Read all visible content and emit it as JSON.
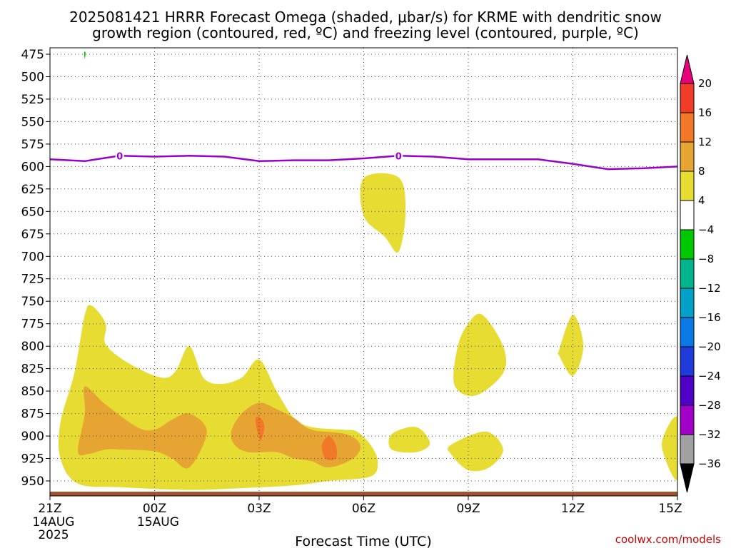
{
  "title_lines": [
    "2025081421 HRRR Forecast Omega (shaded, μbar/s) for KRME with dendritic snow",
    "growth region (contoured, red, ºC) and freezing level (contoured, purple, ºC)"
  ],
  "credit": "coolwx.com/models",
  "chart_data": {
    "type": "time-height contour",
    "xlabel": "Forecast Time (UTC)",
    "ylabel": "",
    "x_range_hours": [
      0,
      18
    ],
    "ylim_hpa": [
      470,
      962
    ],
    "y_inverted": true,
    "grid": true,
    "y_ticks": [
      475,
      500,
      525,
      550,
      575,
      600,
      625,
      650,
      675,
      700,
      725,
      750,
      775,
      800,
      825,
      850,
      875,
      900,
      925,
      950
    ],
    "x_ticks": [
      {
        "hour": 0,
        "label": "21Z",
        "date": [
          "14AUG",
          "2025"
        ]
      },
      {
        "hour": 3,
        "label": "00Z",
        "date": [
          "15AUG"
        ]
      },
      {
        "hour": 6,
        "label": "03Z",
        "date": []
      },
      {
        "hour": 9,
        "label": "06Z",
        "date": []
      },
      {
        "hour": 12,
        "label": "09Z",
        "date": []
      },
      {
        "hour": 15,
        "label": "12Z",
        "date": []
      },
      {
        "hour": 18,
        "label": "15Z",
        "date": []
      }
    ],
    "colorbar": {
      "units": "μbar/s",
      "labels": [
        "20",
        "16",
        "12",
        "8",
        "4",
        "−4",
        "−8",
        "−12",
        "−16",
        "−20",
        "−24",
        "−28",
        "−32",
        "−36"
      ],
      "bins": [
        {
          "range": ">20",
          "color": "#e6007a"
        },
        {
          "range": "16 to 20",
          "color": "#f03c28"
        },
        {
          "range": "12 to 16",
          "color": "#f07828"
        },
        {
          "range": "8 to 12",
          "color": "#e6a532"
        },
        {
          "range": "4 to 8",
          "color": "#e6dc32"
        },
        {
          "range": "-4 to 4",
          "color": "#ffffff"
        },
        {
          "range": "-8 to -4",
          "color": "#00c800"
        },
        {
          "range": "-12 to -8",
          "color": "#00b48c"
        },
        {
          "range": "-16 to -12",
          "color": "#00a0c8"
        },
        {
          "range": "-20 to -16",
          "color": "#0a78e6"
        },
        {
          "range": "-24 to -20",
          "color": "#1e3cdc"
        },
        {
          "range": "-28 to -24",
          "color": "#5000c8"
        },
        {
          "range": "-32 to -28",
          "color": "#a000c8"
        },
        {
          "range": "-36 to -32",
          "color": "#a0a0a0"
        },
        {
          "range": "<-36",
          "color": "#000000"
        }
      ]
    },
    "freezing_level": {
      "label": "0",
      "color": "#9900cc",
      "points": [
        [
          0,
          592
        ],
        [
          1,
          594
        ],
        [
          2,
          588
        ],
        [
          3,
          589
        ],
        [
          4,
          588
        ],
        [
          5,
          589
        ],
        [
          6,
          594
        ],
        [
          7,
          593
        ],
        [
          8,
          593
        ],
        [
          9,
          591
        ],
        [
          10,
          588
        ],
        [
          11,
          589
        ],
        [
          12,
          592
        ],
        [
          13,
          592
        ],
        [
          14,
          592
        ],
        [
          15,
          597
        ],
        [
          16,
          603
        ],
        [
          17,
          602
        ],
        [
          18,
          600
        ]
      ],
      "label_hours": [
        2,
        10
      ]
    },
    "omega_regions": [
      {
        "level": "4-8",
        "color": "#e6dc32",
        "points": [
          [
            0.3,
            885
          ],
          [
            0.7,
            830
          ],
          [
            1.0,
            765
          ],
          [
            1.2,
            755
          ],
          [
            1.6,
            775
          ],
          [
            1.6,
            798
          ],
          [
            2.3,
            820
          ],
          [
            3.2,
            835
          ],
          [
            3.6,
            828
          ],
          [
            4.0,
            800
          ],
          [
            4.4,
            835
          ],
          [
            4.9,
            842
          ],
          [
            5.5,
            835
          ],
          [
            6.0,
            815
          ],
          [
            6.5,
            850
          ],
          [
            7.0,
            880
          ],
          [
            7.5,
            890
          ],
          [
            8.4,
            893
          ],
          [
            8.8,
            895
          ],
          [
            9.2,
            910
          ],
          [
            9.4,
            928
          ],
          [
            9.2,
            945
          ],
          [
            8.0,
            950
          ],
          [
            7.0,
            955
          ],
          [
            5.5,
            958
          ],
          [
            4.0,
            960
          ],
          [
            2.0,
            957
          ],
          [
            0.8,
            953
          ],
          [
            0.3,
            925
          ]
        ]
      },
      {
        "level": "8-12",
        "color": "#e6a532",
        "points": [
          [
            0.8,
            917
          ],
          [
            1.0,
            875
          ],
          [
            1.0,
            845
          ],
          [
            1.6,
            865
          ],
          [
            2.5,
            890
          ],
          [
            3.0,
            893
          ],
          [
            3.5,
            882
          ],
          [
            4.0,
            875
          ],
          [
            4.5,
            895
          ],
          [
            4.0,
            935
          ],
          [
            3.5,
            925
          ],
          [
            3.0,
            917
          ],
          [
            2.0,
            915
          ],
          [
            1.6,
            915
          ],
          [
            1.1,
            920
          ]
        ]
      },
      {
        "level": "8-12",
        "color": "#e6a532",
        "points": [
          [
            5.2,
            895
          ],
          [
            5.5,
            875
          ],
          [
            6.0,
            863
          ],
          [
            6.5,
            870
          ],
          [
            7.0,
            880
          ],
          [
            7.5,
            893
          ],
          [
            8.5,
            898
          ],
          [
            8.9,
            910
          ],
          [
            8.7,
            925
          ],
          [
            8.0,
            935
          ],
          [
            7.5,
            928
          ],
          [
            7.0,
            925
          ],
          [
            6.5,
            918
          ],
          [
            5.7,
            918
          ],
          [
            5.3,
            910
          ]
        ]
      },
      {
        "level": "12-16",
        "color": "#f07828",
        "points": [
          [
            5.9,
            880
          ],
          [
            6.05,
            880
          ],
          [
            6.15,
            890
          ],
          [
            6.05,
            905
          ],
          [
            5.95,
            895
          ]
        ]
      },
      {
        "level": "12-16",
        "color": "#f07828",
        "points": [
          [
            7.8,
            910
          ],
          [
            8.0,
            900
          ],
          [
            8.2,
            910
          ],
          [
            8.2,
            925
          ],
          [
            7.9,
            925
          ]
        ]
      },
      {
        "level": "4-8",
        "color": "#e6dc32",
        "points": [
          [
            9.0,
            613
          ],
          [
            10.0,
            612
          ],
          [
            10.2,
            650
          ],
          [
            10.0,
            695
          ],
          [
            9.6,
            678
          ],
          [
            9.0,
            655
          ]
        ]
      },
      {
        "level": "4-8",
        "color": "#e6dc32",
        "points": [
          [
            12.0,
            775
          ],
          [
            12.4,
            765
          ],
          [
            13.0,
            800
          ],
          [
            13.0,
            830
          ],
          [
            12.2,
            855
          ],
          [
            11.6,
            843
          ],
          [
            11.7,
            800
          ]
        ]
      },
      {
        "level": "4-8",
        "color": "#e6dc32",
        "points": [
          [
            14.6,
            805
          ],
          [
            15.0,
            765
          ],
          [
            15.3,
            800
          ],
          [
            15.0,
            833
          ],
          [
            14.6,
            810
          ]
        ]
      },
      {
        "level": "4-8",
        "color": "#e6dc32",
        "points": [
          [
            9.8,
            898
          ],
          [
            10.5,
            890
          ],
          [
            10.9,
            908
          ],
          [
            10.5,
            918
          ],
          [
            9.8,
            915
          ]
        ]
      },
      {
        "level": "4-8",
        "color": "#e6dc32",
        "points": [
          [
            11.5,
            910
          ],
          [
            12.5,
            895
          ],
          [
            13.0,
            915
          ],
          [
            12.6,
            935
          ],
          [
            12.0,
            938
          ],
          [
            11.5,
            920
          ]
        ]
      },
      {
        "level": "4-8",
        "color": "#e6dc32",
        "points": [
          [
            17.6,
            900
          ],
          [
            18.0,
            880
          ],
          [
            18.0,
            948
          ],
          [
            17.6,
            920
          ]
        ]
      },
      {
        "level": "-8--4",
        "color": "#00c800",
        "points": [
          [
            0.98,
            473
          ],
          [
            1.02,
            473
          ],
          [
            1.0,
            480
          ]
        ]
      }
    ],
    "terrain": {
      "color": "#a0522d",
      "surface_hpa": 962
    }
  }
}
